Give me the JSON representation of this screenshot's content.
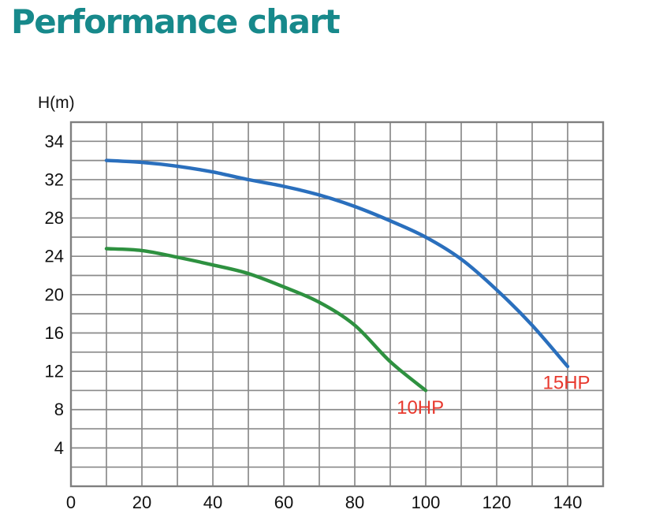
{
  "title": {
    "text": "Performance chart",
    "color": "#17898b"
  },
  "chart_data": {
    "type": "line",
    "title": "Performance chart",
    "ylabel": "H(m)",
    "xlabel": "",
    "x_range": [
      0,
      150
    ],
    "x_grid_step": 10,
    "x_tick_labels": [
      0,
      20,
      40,
      60,
      80,
      100,
      120,
      140
    ],
    "y_tick_labels": [
      34,
      32,
      28,
      24,
      20,
      16,
      12,
      8,
      4
    ],
    "grid": true,
    "legend_position": "inline-curve-labels",
    "colors": {
      "grid": "#8a8a8a",
      "border": "#7f7f7f",
      "axis_text": "#111111",
      "curve_label": "#e8392e",
      "curve_15hp": "#2a6fbd",
      "curve_10hp": "#2e9140"
    },
    "series": [
      {
        "name": "15HP",
        "color": "#2a6fbd",
        "label": {
          "text": "15HP",
          "x": 133,
          "h": 10.15
        },
        "points": [
          [
            10,
            33.0
          ],
          [
            20,
            32.9
          ],
          [
            30,
            32.7
          ],
          [
            40,
            32.4
          ],
          [
            50,
            32.0
          ],
          [
            60,
            31.3
          ],
          [
            70,
            30.4
          ],
          [
            80,
            29.2
          ],
          [
            90,
            27.7
          ],
          [
            100,
            26.0
          ],
          [
            110,
            23.7
          ],
          [
            120,
            20.5
          ],
          [
            130,
            16.8
          ],
          [
            140,
            12.5
          ]
        ]
      },
      {
        "name": "10HP",
        "color": "#2e9140",
        "label": {
          "text": "10HP",
          "x": 91.8,
          "h": 7.55
        },
        "points": [
          [
            10,
            24.8
          ],
          [
            20,
            24.6
          ],
          [
            30,
            23.9
          ],
          [
            40,
            23.1
          ],
          [
            50,
            22.2
          ],
          [
            60,
            20.8
          ],
          [
            70,
            19.2
          ],
          [
            80,
            16.8
          ],
          [
            90,
            13.0
          ],
          [
            100,
            10.0
          ]
        ]
      }
    ]
  }
}
